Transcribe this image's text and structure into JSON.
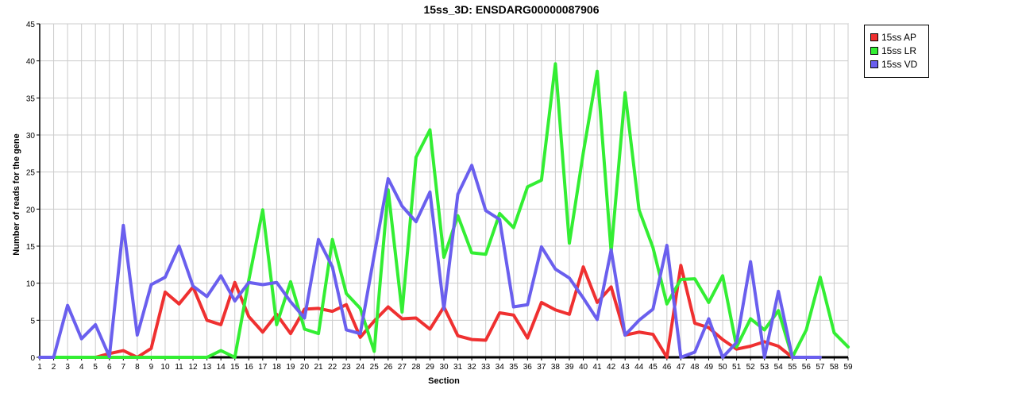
{
  "chart_data": {
    "type": "line",
    "title": "15ss_3D: ENSDARG00000087906",
    "xlabel": "Section",
    "ylabel": "Number of reads for the gene",
    "x": [
      1,
      2,
      3,
      4,
      5,
      6,
      7,
      8,
      9,
      10,
      11,
      12,
      13,
      14,
      15,
      16,
      17,
      18,
      19,
      20,
      21,
      22,
      23,
      24,
      25,
      26,
      27,
      28,
      29,
      30,
      31,
      32,
      33,
      34,
      35,
      36,
      37,
      38,
      39,
      40,
      41,
      42,
      43,
      44,
      45,
      46,
      47,
      48,
      49,
      50,
      51,
      52,
      53,
      54,
      55,
      56,
      57,
      58,
      59
    ],
    "ylim": [
      0,
      45
    ],
    "yticks": [
      0,
      5,
      10,
      15,
      20,
      25,
      30,
      35,
      40,
      45
    ],
    "grid": true,
    "legend_position": "top-right",
    "series": [
      {
        "name": "15ss AP",
        "color": "#ef3030",
        "values": [
          0,
          0,
          0,
          0,
          0,
          0.5,
          0.9,
          0,
          1.2,
          8.8,
          7.2,
          9.5,
          5.0,
          4.4,
          10.1,
          5.5,
          3.4,
          5.8,
          3.2,
          6.5,
          6.6,
          6.2,
          7.1,
          2.7,
          4.9,
          6.8,
          5.2,
          5.3,
          3.8,
          6.8,
          2.9,
          2.4,
          2.3,
          6.0,
          5.7,
          2.6,
          7.4,
          6.4,
          5.8,
          12.2,
          7.4,
          9.5,
          3.0,
          3.4,
          3.1,
          0,
          12.4,
          4.6,
          4.0,
          2.4,
          1.1,
          1.5,
          2.1,
          1.5,
          0,
          null,
          null,
          null,
          null
        ]
      },
      {
        "name": "15ss LR",
        "color": "#33ee33",
        "values": [
          0,
          0,
          0,
          0,
          0,
          0,
          0,
          0,
          0,
          0,
          0,
          0,
          0,
          0.9,
          0,
          10.4,
          19.9,
          4.4,
          10.2,
          3.8,
          3.2,
          15.9,
          8.6,
          6.6,
          0.8,
          22.6,
          6.1,
          27.0,
          30.7,
          13.5,
          19.1,
          14.1,
          13.9,
          19.4,
          17.5,
          23.0,
          23.9,
          39.6,
          15.4,
          27.6,
          38.6,
          14.2,
          35.7,
          19.9,
          14.8,
          7.2,
          10.5,
          10.6,
          7.4,
          11.0,
          1.4,
          5.2,
          3.7,
          6.3,
          0,
          3.7,
          10.8,
          3.3,
          1.4
        ]
      },
      {
        "name": "15ss VD",
        "color": "#6a5fee",
        "values": [
          0,
          0,
          7.0,
          2.5,
          4.4,
          0.1,
          17.8,
          3.0,
          9.8,
          10.8,
          15.0,
          9.6,
          8.2,
          11.0,
          7.6,
          10.1,
          9.8,
          10.1,
          7.5,
          5.3,
          15.9,
          12.2,
          3.7,
          3.2,
          13.8,
          24.1,
          20.4,
          18.3,
          22.3,
          6.5,
          22.0,
          25.9,
          19.8,
          18.6,
          6.8,
          7.1,
          14.9,
          11.9,
          10.7,
          8.0,
          5.1,
          14.5,
          3.0,
          5.0,
          6.5,
          15.1,
          0,
          0.7,
          5.2,
          0,
          2.0,
          12.9,
          0,
          8.9,
          0,
          0,
          0,
          null,
          null
        ]
      }
    ]
  }
}
